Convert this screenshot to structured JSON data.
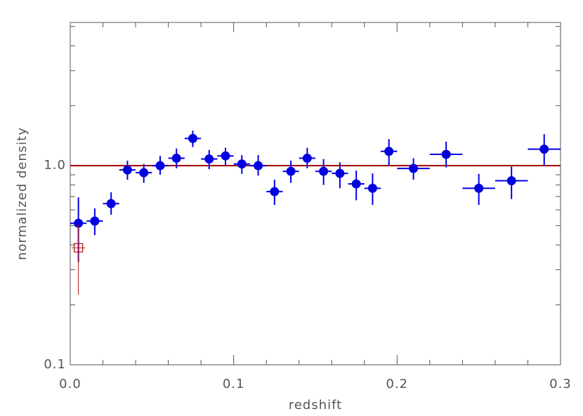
{
  "chart_data": {
    "type": "scatter",
    "x_label": "redshift",
    "y_label": "normalized density",
    "xlim": [
      0,
      0.3
    ],
    "ylim": [
      0.1,
      5.24
    ],
    "y_log": true,
    "xticks": [
      {
        "value": 0,
        "label": "0.0"
      },
      0.1,
      0.2,
      0.3
    ],
    "x_minor_ticks": [
      0.02,
      0.04,
      0.06,
      0.08,
      0.12,
      0.14,
      0.16,
      0.18,
      0.22,
      0.24,
      0.26,
      0.28
    ],
    "yticks": [
      0.1,
      {
        "value": 1,
        "label": "1.0"
      }
    ],
    "y_minor_ticks": [
      0.2,
      0.3,
      0.4,
      0.5,
      0.6,
      0.7,
      0.8,
      0.9,
      2,
      3,
      4,
      5
    ],
    "reference_line": {
      "value": 1,
      "color": "#a00000"
    },
    "series": [
      {
        "color": "#0000e0",
        "marker": "circle",
        "x": [
          0.005,
          0.015,
          0.025,
          0.035,
          0.045,
          0.055,
          0.065,
          0.075,
          0.085,
          0.095,
          0.105,
          0.115,
          0.125,
          0.135,
          0.145,
          0.155,
          0.165,
          0.175,
          0.185,
          0.195,
          0.21,
          0.23,
          0.25,
          0.27,
          0.29
        ],
        "xerr": [
          0.005,
          0.005,
          0.005,
          0.005,
          0.005,
          0.005,
          0.005,
          0.005,
          0.005,
          0.005,
          0.005,
          0.005,
          0.005,
          0.005,
          0.005,
          0.005,
          0.005,
          0.005,
          0.005,
          0.005,
          0.01,
          0.01,
          0.01,
          0.01,
          0.01
        ],
        "y": [
          0.514,
          0.527,
          0.645,
          0.952,
          0.922,
          1.0,
          1.09,
          1.37,
          1.08,
          1.12,
          1.02,
          1.0,
          0.741,
          0.937,
          1.09,
          0.937,
          0.915,
          0.81,
          0.77,
          1.18,
          0.968,
          1.14,
          0.77,
          0.84,
          1.21
        ],
        "ylow": [
          0.329,
          0.448,
          0.567,
          0.85,
          0.82,
          0.9,
          0.97,
          1.24,
          0.96,
          1.0,
          0.91,
          0.89,
          0.635,
          0.82,
          0.97,
          0.8,
          0.77,
          0.67,
          0.635,
          1.0,
          0.85,
          0.98,
          0.635,
          0.68,
          1.0
        ],
        "yhigh": [
          0.694,
          0.61,
          0.735,
          1.06,
          1.02,
          1.12,
          1.22,
          1.5,
          1.2,
          1.23,
          1.13,
          1.13,
          0.85,
          1.06,
          1.23,
          1.08,
          1.04,
          0.945,
          0.915,
          1.36,
          1.09,
          1.32,
          0.91,
          0.99,
          1.44
        ]
      },
      {
        "color": "#b01010",
        "marker": "square",
        "x": [
          0.005
        ],
        "xerr": [
          0.004
        ],
        "y": [
          0.387
        ],
        "ylow": [
          0.225
        ],
        "yhigh": [
          0.506
        ]
      }
    ]
  }
}
